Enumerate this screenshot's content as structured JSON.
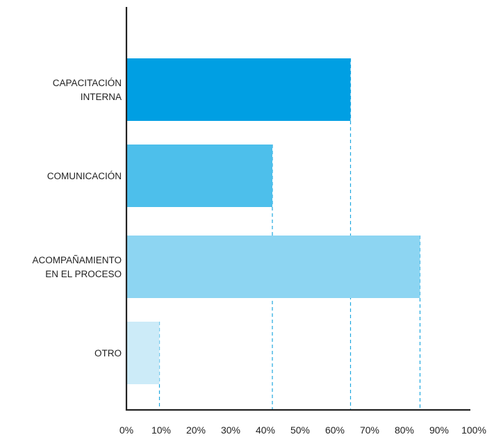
{
  "chart_data": {
    "type": "bar",
    "orientation": "horizontal",
    "categories": [
      [
        "CAPACITACIÓN",
        "INTERNA"
      ],
      [
        "COMUNICACIÓN"
      ],
      [
        "ACOMPAÑAMIENTO",
        "EN EL PROCESO"
      ],
      [
        "OTRO"
      ]
    ],
    "values": [
      64.5,
      42,
      84.5,
      9.5
    ],
    "xlim": [
      0,
      100
    ],
    "ticks": [
      "0%",
      "10%",
      "20%",
      "30%",
      "40%",
      "50%",
      "60%",
      "70%",
      "80%",
      "90%",
      "100%"
    ],
    "tick_values": [
      0,
      10,
      20,
      30,
      40,
      50,
      60,
      70,
      80,
      90,
      100
    ],
    "title": "",
    "xlabel": "",
    "ylabel": "",
    "grid": false,
    "reference_lines": "dashed vertical line at the end of each bar",
    "colors": {
      "bars": [
        "#009FE3",
        "#4DBFEB",
        "#8DD5F2",
        "#CCEBF8"
      ],
      "axis": "#222222",
      "reference_line": "#1FA8DF"
    }
  }
}
